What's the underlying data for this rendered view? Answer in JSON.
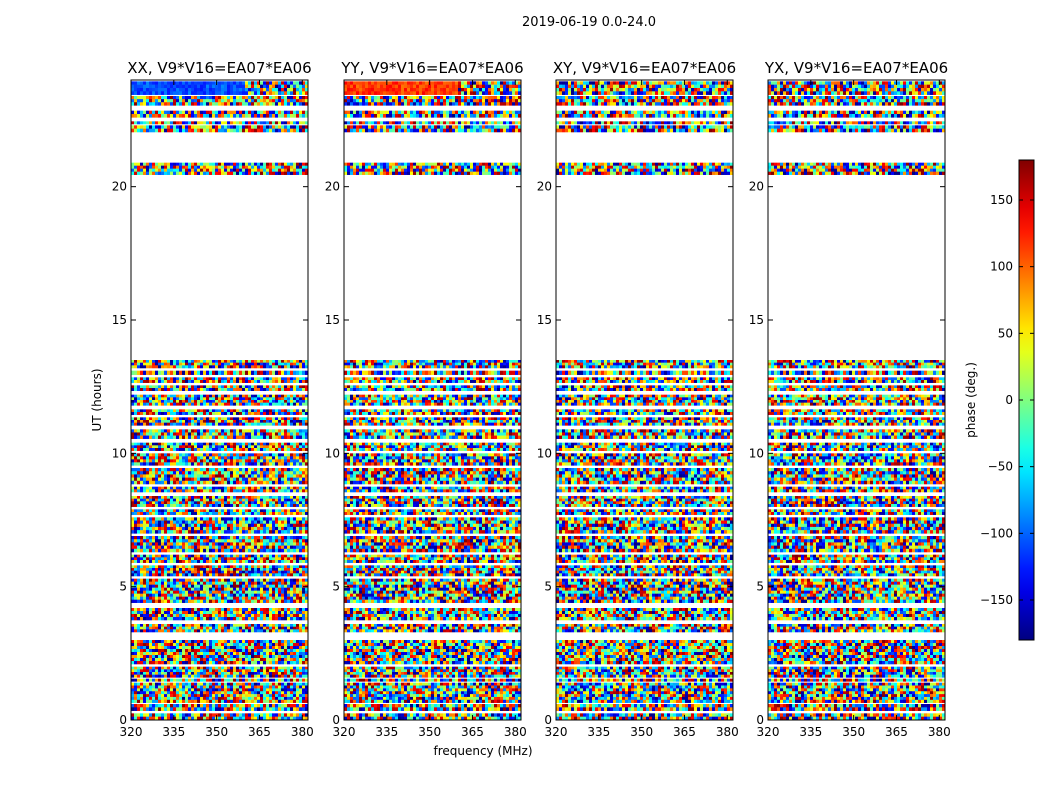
{
  "figure": {
    "suptitle": "2019-06-19 0.0-24.0"
  },
  "chart_data": {
    "type": "heatmap",
    "title": "2019-06-19 0.0-24.0",
    "xlabel": "frequency (MHz)",
    "ylabel": "UT (hours)",
    "xlim": [
      320,
      382
    ],
    "ylim": [
      0,
      24
    ],
    "xticks": [
      "320",
      "335",
      "350",
      "365",
      "380"
    ],
    "xtick_values": [
      320,
      335,
      350,
      365,
      380
    ],
    "yticks": [
      "0",
      "5",
      "10",
      "15",
      "20"
    ],
    "ytick_values": [
      0,
      5,
      10,
      15,
      20
    ],
    "panels": [
      {
        "title": "XX, V9*V16=EA07*EA06",
        "mode": "XX"
      },
      {
        "title": "YY, V9*V16=EA07*EA06",
        "mode": "YY"
      },
      {
        "title": "XY, V9*V16=EA07*EA06",
        "mode": "XY"
      },
      {
        "title": "YX, V9*V16=EA07*EA06",
        "mode": "YX"
      }
    ],
    "data_blocks_ut_hours": [
      [
        0.0,
        0.25
      ],
      [
        0.35,
        0.6
      ],
      [
        0.65,
        1.4
      ],
      [
        1.45,
        1.55
      ],
      [
        1.6,
        2.0
      ],
      [
        2.1,
        3.0
      ],
      [
        3.3,
        3.6
      ],
      [
        3.75,
        4.2
      ],
      [
        4.4,
        5.3
      ],
      [
        5.4,
        5.8
      ],
      [
        5.9,
        6.2
      ],
      [
        6.3,
        6.9
      ],
      [
        7.0,
        7.6
      ],
      [
        7.7,
        7.9
      ],
      [
        8.0,
        8.4
      ],
      [
        8.55,
        8.75
      ],
      [
        8.85,
        9.45
      ],
      [
        9.55,
        10.0
      ],
      [
        10.1,
        10.4
      ],
      [
        10.55,
        10.9
      ],
      [
        11.05,
        11.35
      ],
      [
        11.45,
        11.65
      ],
      [
        11.8,
        12.2
      ],
      [
        12.35,
        12.55
      ],
      [
        12.65,
        12.85
      ],
      [
        12.95,
        13.1
      ],
      [
        13.2,
        13.5
      ],
      [
        20.45,
        20.9
      ],
      [
        22.05,
        22.3
      ],
      [
        22.35,
        22.45
      ],
      [
        22.6,
        22.85
      ],
      [
        23.05,
        23.4
      ],
      [
        23.45,
        23.95
      ]
    ],
    "colorbar": {
      "label": "phase (deg.)",
      "colormap": "jet",
      "range": [
        -180,
        180
      ],
      "ticks": [
        "150",
        "100",
        "50",
        "0",
        "−50",
        "−100",
        "−150"
      ],
      "tick_values": [
        150,
        100,
        50,
        0,
        -50,
        -100,
        -150
      ]
    }
  }
}
